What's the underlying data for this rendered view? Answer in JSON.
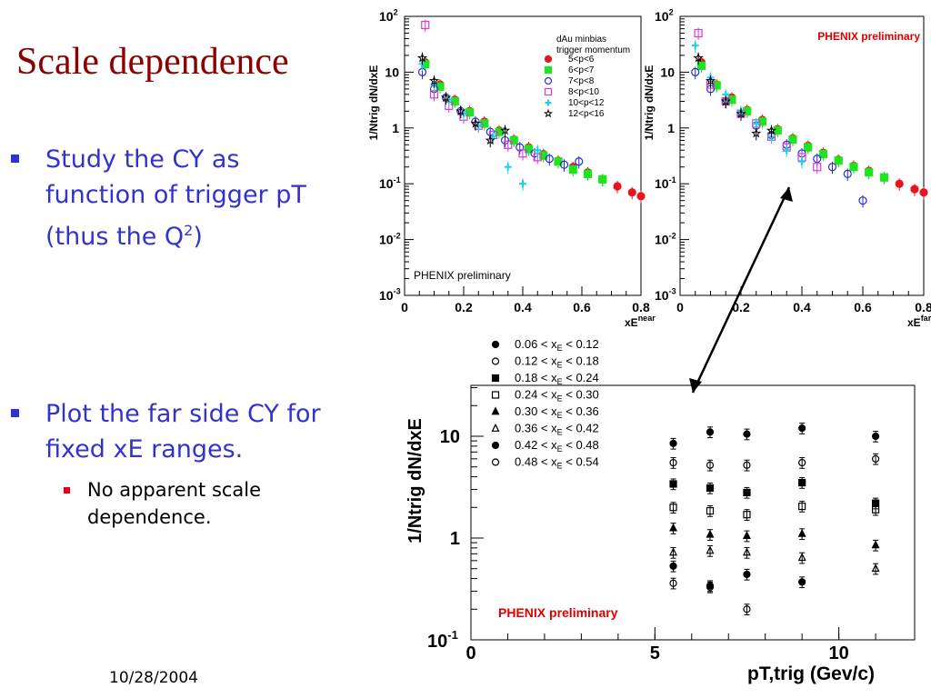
{
  "slide": {
    "title": "Scale dependence",
    "bullets": [
      {
        "lines": [
          "Study the CY as",
          "function of trigger pT"
        ],
        "line3_pre": "(thus the Q",
        "line3_sup": "2",
        "line3_post": ")"
      },
      {
        "lines": [
          "Plot the far side CY for",
          "fixed xE ranges."
        ]
      }
    ],
    "subbullet": {
      "lines": [
        "No apparent scale",
        "dependence."
      ]
    },
    "footer": "10/28/2004"
  },
  "colors": {
    "title": "#8b0000",
    "bullet": "#3333cc",
    "prelim_red": "#dd0000",
    "s1": "#e8141e",
    "s2": "#1ee61e",
    "s3": "#2b2bd6",
    "s4": "#d63ad6",
    "s5": "#19d2e6",
    "s6": "#000000"
  },
  "chart_data": [
    {
      "type": "scatter",
      "name": "near",
      "ylabel": "1/N_trig dN/dx_E",
      "xlabel": "x_E^near",
      "xlim": [
        0,
        0.8
      ],
      "ylim_log10": [
        -3,
        2
      ],
      "xticks": [
        "0",
        "0.2",
        "0.4",
        "0.6",
        "0.8"
      ],
      "yticks": [
        "10^-3",
        "10^-2",
        "10^-1",
        "1",
        "10",
        "10^2"
      ],
      "legend": {
        "title": [
          "dAu minbias",
          "trigger momentum"
        ],
        "entries": [
          "5<p<6",
          "6<p<7",
          "7<p<8",
          "8<p<10",
          "10<p<12",
          "12<p<16"
        ]
      },
      "annotation": "PHENIX preliminary",
      "series": [
        {
          "name": "5<p<6",
          "marker": "circle-filled",
          "color": "s1",
          "x": [
            0.07,
            0.12,
            0.17,
            0.22,
            0.27,
            0.32,
            0.37,
            0.42,
            0.47,
            0.52,
            0.57,
            0.62,
            0.67,
            0.72,
            0.77,
            0.8
          ],
          "y": [
            15,
            6,
            3.2,
            2,
            1.3,
            0.9,
            0.62,
            0.45,
            0.34,
            0.26,
            0.2,
            0.16,
            0.12,
            0.09,
            0.07,
            0.06
          ]
        },
        {
          "name": "6<p<7",
          "marker": "square-filled",
          "color": "s2",
          "x": [
            0.07,
            0.12,
            0.17,
            0.22,
            0.27,
            0.32,
            0.37,
            0.42,
            0.47,
            0.52,
            0.57,
            0.62,
            0.67
          ],
          "y": [
            14,
            5.5,
            3,
            1.9,
            1.2,
            0.85,
            0.6,
            0.42,
            0.32,
            0.25,
            0.18,
            0.15,
            0.12
          ]
        },
        {
          "name": "7<p<8",
          "marker": "circle-open",
          "color": "s3",
          "x": [
            0.06,
            0.1,
            0.14,
            0.19,
            0.24,
            0.29,
            0.34,
            0.39,
            0.44,
            0.49,
            0.54,
            0.59
          ],
          "y": [
            10,
            5,
            3.5,
            2,
            1.3,
            0.85,
            0.6,
            0.45,
            0.35,
            0.28,
            0.22,
            0.25
          ]
        },
        {
          "name": "8<p<10",
          "marker": "square-open",
          "color": "s4",
          "x": [
            0.07,
            0.1,
            0.15,
            0.2,
            0.25,
            0.3,
            0.35,
            0.4,
            0.45
          ],
          "y": [
            70,
            4,
            2.5,
            1.6,
            1.1,
            0.75,
            0.5,
            0.35,
            0.3
          ]
        },
        {
          "name": "10<p<12",
          "marker": "cross",
          "color": "s5",
          "x": [
            0.06,
            0.1,
            0.15,
            0.2,
            0.25,
            0.3,
            0.35,
            0.4,
            0.45
          ],
          "y": [
            14,
            6,
            3.2,
            1.8,
            1.1,
            0.7,
            0.2,
            0.1,
            0.4
          ]
        },
        {
          "name": "12<p<16",
          "marker": "star",
          "color": "s6",
          "x": [
            0.06,
            0.1,
            0.14,
            0.19,
            0.24,
            0.29,
            0.34
          ],
          "y": [
            18,
            7,
            3.5,
            2,
            1.2,
            0.6,
            0.9
          ]
        }
      ]
    },
    {
      "type": "scatter",
      "name": "far",
      "ylabel": "1/N_trig dN/dx_E",
      "xlabel": "x_E^far",
      "xlim": [
        0,
        0.8
      ],
      "ylim_log10": [
        -3,
        2
      ],
      "xticks": [
        "0",
        "0.2",
        "0.4",
        "0.6",
        "0.8"
      ],
      "yticks": [
        "10^-3",
        "10^-2",
        "10^-1",
        "1",
        "10",
        "10^2"
      ],
      "annotation": "PHENIX preliminary",
      "series": [
        {
          "name": "5<p<6",
          "marker": "circle-filled",
          "color": "s1",
          "x": [
            0.07,
            0.12,
            0.17,
            0.22,
            0.27,
            0.32,
            0.37,
            0.42,
            0.47,
            0.52,
            0.57,
            0.62,
            0.67,
            0.72,
            0.77,
            0.8
          ],
          "y": [
            15,
            6,
            3.5,
            2.1,
            1.4,
            0.95,
            0.65,
            0.48,
            0.36,
            0.27,
            0.21,
            0.17,
            0.13,
            0.1,
            0.08,
            0.07
          ]
        },
        {
          "name": "6<p<7",
          "marker": "square-filled",
          "color": "s2",
          "x": [
            0.07,
            0.12,
            0.17,
            0.22,
            0.27,
            0.32,
            0.37,
            0.42,
            0.47,
            0.52,
            0.57,
            0.62,
            0.67
          ],
          "y": [
            13,
            5.8,
            3.2,
            2,
            1.3,
            0.9,
            0.62,
            0.45,
            0.34,
            0.26,
            0.2,
            0.16,
            0.13
          ]
        },
        {
          "name": "7<p<8",
          "marker": "circle-open",
          "color": "s3",
          "x": [
            0.05,
            0.1,
            0.15,
            0.2,
            0.25,
            0.3,
            0.35,
            0.4,
            0.45,
            0.5,
            0.55,
            0.6
          ],
          "y": [
            10,
            5,
            3,
            1.8,
            1.1,
            0.75,
            0.5,
            0.35,
            0.28,
            0.2,
            0.15,
            0.05
          ]
        },
        {
          "name": "8<p<10",
          "marker": "square-open",
          "color": "s4",
          "x": [
            0.06,
            0.1,
            0.15,
            0.2,
            0.25,
            0.3,
            0.35,
            0.4,
            0.45
          ],
          "y": [
            50,
            6,
            3,
            1.8,
            1.2,
            0.7,
            0.45,
            0.3,
            0.2
          ]
        },
        {
          "name": "10<p<12",
          "marker": "cross",
          "color": "s5",
          "x": [
            0.05,
            0.1,
            0.15,
            0.2,
            0.25,
            0.3,
            0.35,
            0.4
          ],
          "y": [
            30,
            8,
            4,
            2,
            1.2,
            0.7,
            0.4,
            0.25
          ]
        },
        {
          "name": "12<p<16",
          "marker": "star",
          "color": "s6",
          "x": [
            0.06,
            0.1,
            0.15,
            0.2,
            0.25,
            0.3
          ],
          "y": [
            18,
            7,
            3,
            1.8,
            0.8,
            0.9
          ]
        }
      ]
    },
    {
      "type": "scatter",
      "name": "vs-pt",
      "ylabel": "1/N_trig dN/dx_E",
      "xlabel": "p_T,trig (Gev/c)",
      "xlim": [
        0,
        12
      ],
      "ylim_log10": [
        -1,
        1.5
      ],
      "xticks": [
        "0",
        "5",
        "10"
      ],
      "yticks": [
        "10^-1",
        "1",
        "10"
      ],
      "annotation": "PHENIX preliminary",
      "x": [
        5.5,
        6.5,
        7.5,
        9,
        11
      ],
      "series": [
        {
          "name": "0.06 < x_E < 0.12",
          "marker": "circle-filled",
          "y": [
            8.5,
            11,
            10.5,
            12,
            10
          ]
        },
        {
          "name": "0.12 < x_E < 0.18",
          "marker": "circle-open",
          "y": [
            5.5,
            5.2,
            5.2,
            5.5,
            6
          ]
        },
        {
          "name": "0.18 < x_E < 0.24",
          "marker": "square-filled",
          "y": [
            3.4,
            3.1,
            2.8,
            3.5,
            2.2
          ]
        },
        {
          "name": "0.24 < x_E < 0.30",
          "marker": "square-open",
          "y": [
            2,
            1.85,
            1.7,
            2.05,
            1.9
          ]
        },
        {
          "name": "0.30 < x_E < 0.36",
          "marker": "triangle-filled",
          "y": [
            1.25,
            1.08,
            1.05,
            1.1,
            0.85
          ]
        },
        {
          "name": "0.36 < x_E < 0.42",
          "marker": "triangle-open",
          "y": [
            0.72,
            0.75,
            0.72,
            0.64,
            0.5
          ]
        },
        {
          "name": "0.42 < x_E < 0.48",
          "marker": "circle-filled",
          "y": [
            0.53,
            0.34,
            0.44,
            0.37,
            null
          ]
        },
        {
          "name": "0.48 < x_E < 0.54",
          "marker": "circle-open",
          "y": [
            0.36,
            0.33,
            0.2,
            null,
            null
          ]
        }
      ]
    }
  ]
}
